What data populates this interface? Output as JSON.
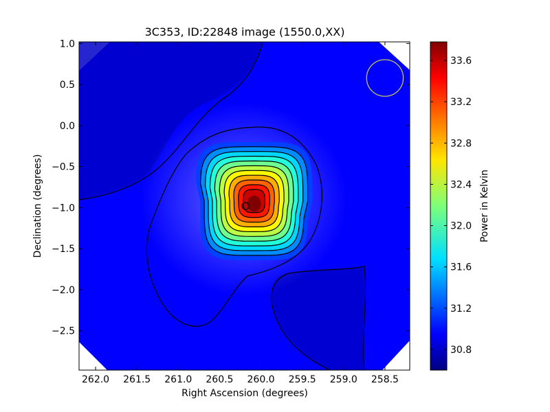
{
  "chart_data": {
    "type": "heatmap",
    "title": "3C353, ID:22848 image (1550.0,XX)",
    "xlabel": "Right Ascension (degrees)",
    "ylabel": "Declination (degrees)",
    "colorbar_label": "Power in Kelvin",
    "xlim": [
      262.2,
      258.2
    ],
    "ylim": [
      -2.98,
      1.02
    ],
    "x_ticks": [
      262.0,
      261.5,
      261.0,
      260.5,
      260.0,
      259.5,
      259.0,
      258.5
    ],
    "x_tick_labels": [
      "262.0",
      "261.5",
      "261.0",
      "260.5",
      "260.0",
      "259.5",
      "259.0",
      "258.5"
    ],
    "y_ticks": [
      1.0,
      0.5,
      0.0,
      -0.5,
      -1.0,
      -1.5,
      -2.0,
      -2.5
    ],
    "y_tick_labels": [
      "1.0",
      "0.5",
      "0.0",
      "−0.5",
      "−1.0",
      "−1.5",
      "−2.0",
      "−2.5"
    ],
    "colorbar_range": [
      30.6,
      33.78
    ],
    "colorbar_ticks": [
      30.8,
      31.2,
      31.6,
      32.0,
      32.4,
      32.8,
      33.2,
      33.6
    ],
    "colorbar_tick_labels": [
      "30.8",
      "31.2",
      "31.6",
      "32.0",
      "32.4",
      "32.8",
      "33.2",
      "33.6"
    ],
    "colormap": "jet",
    "peak": {
      "ra": 260.1,
      "dec": -0.97,
      "value": 33.78
    },
    "background_level": 30.85,
    "beam_circle": {
      "ra": 258.5,
      "dec": 0.58,
      "radius_deg": 0.37,
      "color": "#c8c850"
    },
    "contours": true,
    "grid": false
  }
}
